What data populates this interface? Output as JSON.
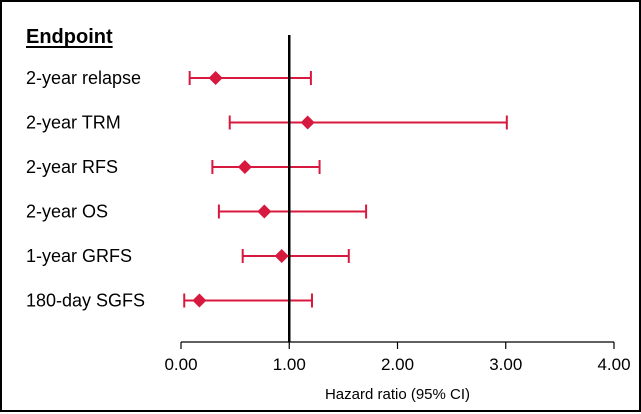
{
  "chart_data": {
    "type": "forest",
    "column_header": "Endpoint",
    "xlabel": "Hazard ratio (95% CI)",
    "xlim": [
      0,
      4
    ],
    "reference_line": 1.0,
    "x_ticks": [
      "0.00",
      "1.00",
      "2.00",
      "3.00",
      "4.00"
    ],
    "x_tick_values": [
      0,
      1,
      2,
      3,
      4
    ],
    "rows": [
      {
        "label": "2-year relapse",
        "estimate": 0.32,
        "ci_low": 0.08,
        "ci_high": 1.2
      },
      {
        "label": "2-year TRM",
        "estimate": 1.17,
        "ci_low": 0.45,
        "ci_high": 3.01
      },
      {
        "label": "2-year RFS",
        "estimate": 0.59,
        "ci_low": 0.29,
        "ci_high": 1.28
      },
      {
        "label": "2-year OS",
        "estimate": 0.77,
        "ci_low": 0.35,
        "ci_high": 1.71
      },
      {
        "label": "1-year GRFS",
        "estimate": 0.93,
        "ci_low": 0.57,
        "ci_high": 1.55
      },
      {
        "label": "180-day SGFS",
        "estimate": 0.17,
        "ci_low": 0.03,
        "ci_high": 1.21
      }
    ],
    "colors": {
      "marker": "#d7193f",
      "axis": "#000000",
      "text": "#000000"
    },
    "grid": false
  }
}
